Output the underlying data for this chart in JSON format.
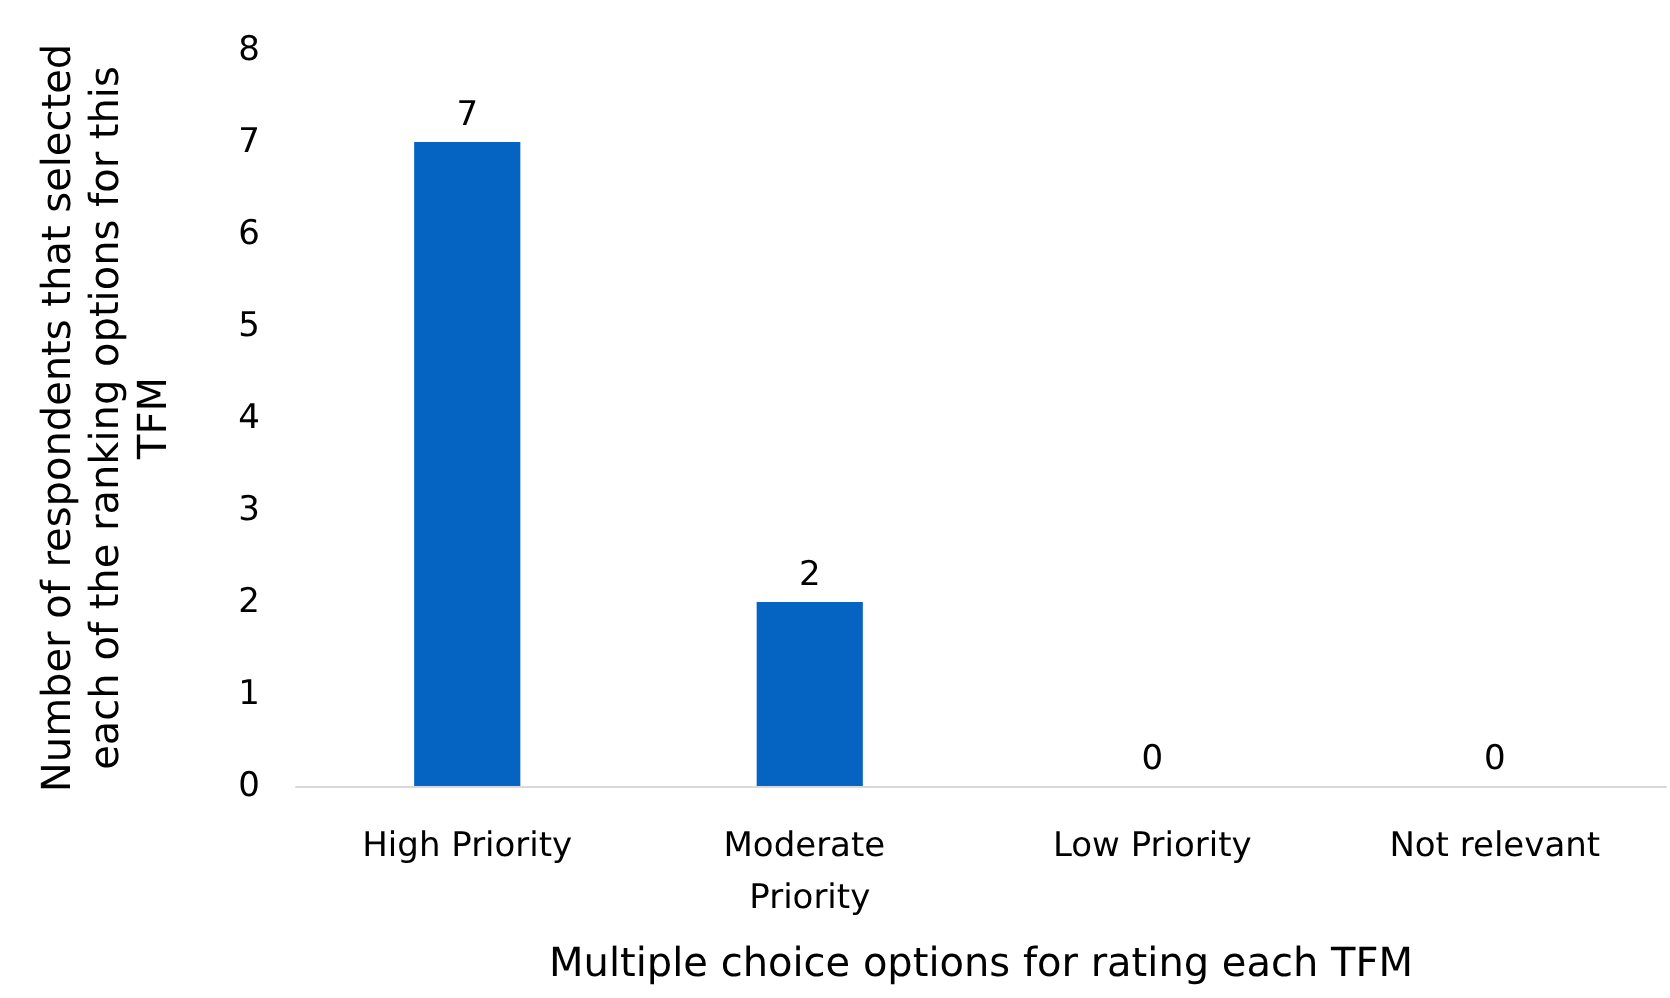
{
  "chart_data": {
    "type": "bar",
    "xlabel": "Multiple choice options for rating each TFM",
    "ylabel": "Number of respondents that selected each of the ranking options for this TFM",
    "categories": [
      "High Priority",
      "Moderate Priority",
      "Low Priority",
      "Not relevant"
    ],
    "values": [
      7,
      2,
      0,
      0
    ],
    "color": "#0563c1",
    "ylim": [
      0,
      8
    ],
    "yticks": [
      0,
      1,
      2,
      3,
      4,
      5,
      6,
      7,
      8
    ],
    "grid": false,
    "data_labels": true
  }
}
